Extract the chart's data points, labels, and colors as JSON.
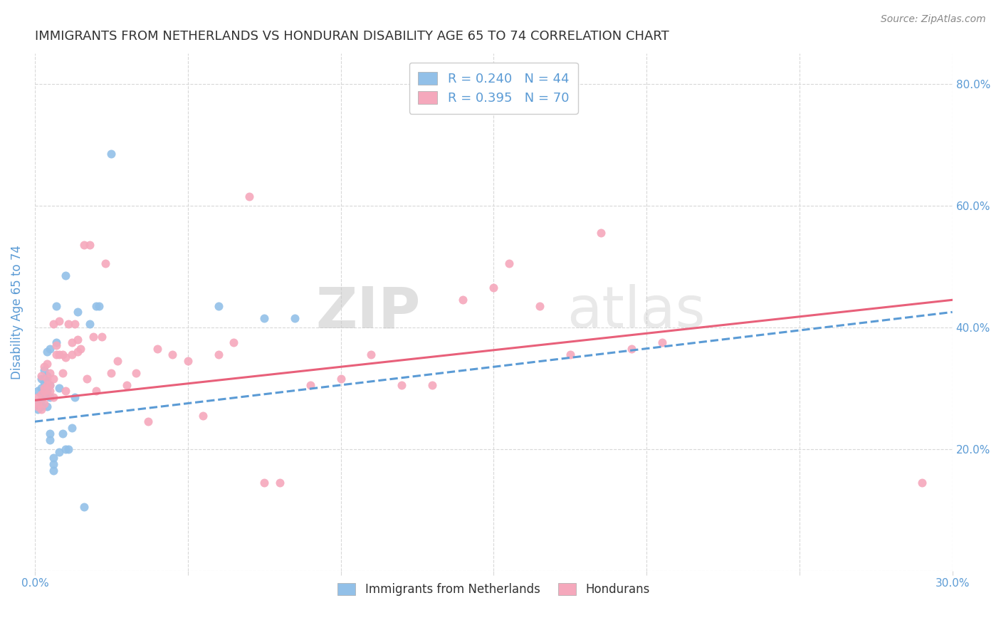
{
  "title": "IMMIGRANTS FROM NETHERLANDS VS HONDURAN DISABILITY AGE 65 TO 74 CORRELATION CHART",
  "source": "Source: ZipAtlas.com",
  "ylabel_label": "Disability Age 65 to 74",
  "x_min": 0.0,
  "x_max": 0.3,
  "y_min": 0.0,
  "y_max": 0.85,
  "x_ticks": [
    0.0,
    0.05,
    0.1,
    0.15,
    0.2,
    0.25,
    0.3
  ],
  "x_tick_labels": [
    "0.0%",
    "",
    "",
    "",
    "",
    "",
    "30.0%"
  ],
  "y_ticks": [
    0.0,
    0.2,
    0.4,
    0.6,
    0.8
  ],
  "y_tick_labels": [
    "",
    "20.0%",
    "40.0%",
    "60.0%",
    "80.0%"
  ],
  "series1_color": "#92c0e8",
  "series2_color": "#f5a8bc",
  "series1_label": "Immigrants from Netherlands",
  "series2_label": "Hondurans",
  "legend_r1": "R = 0.240",
  "legend_n1": "N = 44",
  "legend_r2": "R = 0.395",
  "legend_n2": "N = 70",
  "watermark_zip": "ZIP",
  "watermark_atlas": "atlas",
  "series1_x": [
    0.001,
    0.001,
    0.001,
    0.002,
    0.002,
    0.002,
    0.002,
    0.003,
    0.003,
    0.003,
    0.003,
    0.003,
    0.004,
    0.004,
    0.004,
    0.004,
    0.004,
    0.005,
    0.005,
    0.005,
    0.005,
    0.005,
    0.006,
    0.006,
    0.006,
    0.007,
    0.007,
    0.008,
    0.008,
    0.009,
    0.01,
    0.01,
    0.011,
    0.012,
    0.013,
    0.014,
    0.016,
    0.018,
    0.02,
    0.021,
    0.025,
    0.06,
    0.075,
    0.085
  ],
  "series1_y": [
    0.265,
    0.275,
    0.295,
    0.28,
    0.27,
    0.3,
    0.315,
    0.29,
    0.31,
    0.315,
    0.315,
    0.33,
    0.27,
    0.295,
    0.31,
    0.32,
    0.36,
    0.215,
    0.225,
    0.285,
    0.305,
    0.365,
    0.165,
    0.175,
    0.185,
    0.435,
    0.375,
    0.3,
    0.195,
    0.225,
    0.485,
    0.2,
    0.2,
    0.235,
    0.285,
    0.425,
    0.105,
    0.405,
    0.435,
    0.435,
    0.685,
    0.435,
    0.415,
    0.415
  ],
  "series2_x": [
    0.001,
    0.001,
    0.001,
    0.002,
    0.002,
    0.002,
    0.003,
    0.003,
    0.003,
    0.003,
    0.004,
    0.004,
    0.004,
    0.004,
    0.005,
    0.005,
    0.005,
    0.006,
    0.006,
    0.006,
    0.007,
    0.007,
    0.008,
    0.008,
    0.009,
    0.009,
    0.01,
    0.01,
    0.011,
    0.012,
    0.012,
    0.013,
    0.014,
    0.014,
    0.015,
    0.016,
    0.017,
    0.018,
    0.019,
    0.02,
    0.022,
    0.023,
    0.025,
    0.027,
    0.03,
    0.033,
    0.037,
    0.04,
    0.045,
    0.05,
    0.055,
    0.06,
    0.065,
    0.07,
    0.075,
    0.08,
    0.09,
    0.1,
    0.11,
    0.12,
    0.13,
    0.14,
    0.15,
    0.155,
    0.165,
    0.175,
    0.185,
    0.195,
    0.205,
    0.29
  ],
  "series2_y": [
    0.27,
    0.275,
    0.285,
    0.265,
    0.29,
    0.32,
    0.275,
    0.295,
    0.3,
    0.335,
    0.29,
    0.305,
    0.315,
    0.34,
    0.295,
    0.305,
    0.325,
    0.285,
    0.315,
    0.405,
    0.355,
    0.37,
    0.355,
    0.41,
    0.355,
    0.325,
    0.35,
    0.295,
    0.405,
    0.355,
    0.375,
    0.405,
    0.36,
    0.38,
    0.365,
    0.535,
    0.315,
    0.535,
    0.385,
    0.295,
    0.385,
    0.505,
    0.325,
    0.345,
    0.305,
    0.325,
    0.245,
    0.365,
    0.355,
    0.345,
    0.255,
    0.355,
    0.375,
    0.615,
    0.145,
    0.145,
    0.305,
    0.315,
    0.355,
    0.305,
    0.305,
    0.445,
    0.465,
    0.505,
    0.435,
    0.355,
    0.555,
    0.365,
    0.375,
    0.145
  ],
  "line1_color": "#5b9bd5",
  "line2_color": "#e8607a",
  "line1_x0": 0.0,
  "line1_y0": 0.245,
  "line1_x1": 0.3,
  "line1_y1": 0.425,
  "line2_x0": 0.0,
  "line2_y0": 0.28,
  "line2_x1": 0.3,
  "line2_y1": 0.445,
  "background_color": "#ffffff",
  "grid_color": "#d8d8d8",
  "tick_color": "#5b9bd5",
  "title_fontsize": 13,
  "axis_label_fontsize": 12,
  "tick_fontsize": 11
}
